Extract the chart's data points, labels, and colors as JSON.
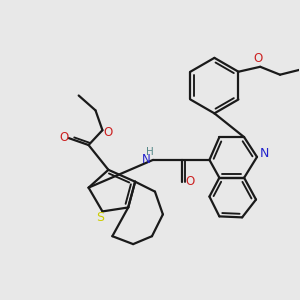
{
  "bg_color": "#e8e8e8",
  "line_color": "#1a1a1a",
  "S_color": "#cccc00",
  "N_color": "#2222cc",
  "O_color": "#cc2222",
  "H_color": "#558888",
  "bond_lw": 1.6,
  "fig_w": 3.0,
  "fig_h": 3.0,
  "dpi": 100,
  "xlim": [
    0,
    300
  ],
  "ylim": [
    0,
    300
  ]
}
